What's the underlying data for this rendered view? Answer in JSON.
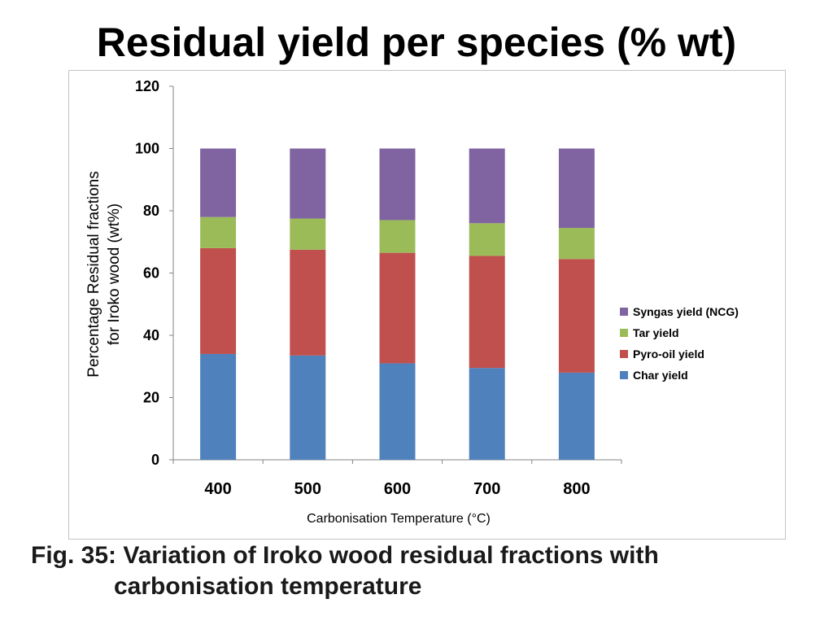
{
  "slide": {
    "title": "Residual yield per species (% wt)",
    "caption_line1": "Fig. 35: Variation of Iroko wood residual fractions with",
    "caption_line2": "carbonisation temperature"
  },
  "chart_data": {
    "type": "bar",
    "stacked": true,
    "categories": [
      "400",
      "500",
      "600",
      "700",
      "800"
    ],
    "series": [
      {
        "name": "Char yield",
        "color": "#4f81bd",
        "values": [
          34,
          33.5,
          31,
          29.5,
          28
        ]
      },
      {
        "name": "Pyro-oil yield",
        "color": "#c0504d",
        "values": [
          34,
          34,
          35.5,
          36,
          36.5
        ]
      },
      {
        "name": "Tar yield",
        "color": "#9bbb59",
        "values": [
          10,
          10,
          10.5,
          10.5,
          10
        ]
      },
      {
        "name": "Syngas yield (NCG)",
        "color": "#8064a2",
        "values": [
          22,
          22.5,
          23,
          24,
          25.5
        ]
      }
    ],
    "xlabel": "Carbonisation Temperature (°C)",
    "ylabel_line1": "Percentage Residual fractions",
    "ylabel_line2": "for Iroko wood  (wt%)",
    "ylim": [
      0,
      120
    ],
    "yticks": [
      "0",
      "20",
      "40",
      "60",
      "80",
      "100",
      "120"
    ],
    "legend_position": "right",
    "legend_order": [
      "Syngas yield (NCG)",
      "Tar yield",
      "Pyro-oil yield",
      "Char yield"
    ],
    "grid": false
  }
}
